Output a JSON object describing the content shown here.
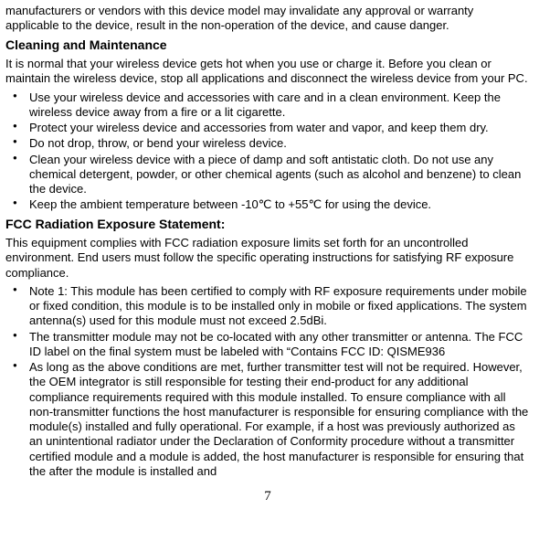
{
  "intro_top": "manufacturers or vendors with this device model may invalidate any approval or warranty applicable to the device, result in the non-operation of the device, and cause danger.",
  "heading1": "Cleaning and Maintenance",
  "para1": "It is normal that your wireless device gets hot when you use or charge it. Before you clean or maintain the wireless device, stop all applications and disconnect the wireless device from your PC.",
  "bullets1": [
    "Use your wireless device and accessories with care and in a clean environment. Keep the wireless device away from a fire or a lit cigarette.",
    "Protect your wireless device and accessories from water and vapor, and keep them dry.",
    "Do not drop, throw, or bend your wireless device.",
    "Clean your wireless device with a piece of damp and soft antistatic cloth. Do not use any chemical detergent, powder, or other chemical agents (such as alcohol and benzene) to clean the device.",
    "Keep the ambient temperature between -10℃ to +55℃ for using the device."
  ],
  "heading2": "FCC Radiation Exposure Statement:",
  "para2": "This equipment complies with FCC radiation exposure limits set forth for an uncontrolled environment. End users must follow the specific operating instructions for satisfying RF exposure compliance.",
  "bullets2": [
    "Note 1: This module has been certified to comply with RF exposure requirements under mobile or fixed condition, this module is to be installed only in mobile or fixed applications. The system antenna(s) used for this module must not exceed 2.5dBi.",
    "The transmitter module may not be co-located with any other transmitter or antenna. The FCC ID label on the final system must be labeled with “Contains FCC ID: QISME936",
    "As long as the above conditions are met, further transmitter test will not be required. However, the OEM integrator is still responsible for testing their end-product for any additional compliance requirements required with this module installed. To ensure compliance with all non-transmitter functions the host manufacturer is responsible for ensuring compliance with the module(s) installed and fully operational. For example, if a host was previously authorized as an unintentional radiator under the Declaration of Conformity procedure without a transmitter certified module and a module is added, the host manufacturer is responsible for ensuring that the after the module is installed and"
  ],
  "pagenum": "7"
}
